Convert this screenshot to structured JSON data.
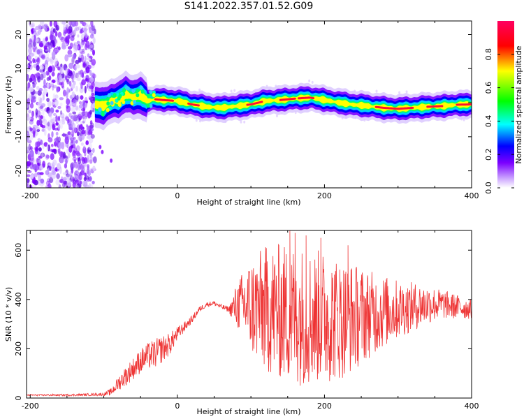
{
  "title": "S141.2022.357.01.52.G09",
  "chart_data": [
    {
      "type": "heatmap",
      "xlabel": "Height of straight line (km)",
      "ylabel": "Frequency (Hz)",
      "xlim": [
        -205,
        400
      ],
      "ylim": [
        -25,
        24
      ],
      "x_ticks": [
        -200,
        0,
        200,
        400
      ],
      "y_ticks": [
        -20,
        -10,
        0,
        10,
        20
      ],
      "colorbar": {
        "label": "Normalized spectral amplitude",
        "range": [
          0,
          1
        ],
        "ticks": [
          0.0,
          0.2,
          0.4,
          0.6,
          0.8
        ],
        "colormap": [
          "#ffffff",
          "#7b00ff",
          "#0000ff",
          "#00ffff",
          "#00ff00",
          "#ffff00",
          "#ff0000",
          "#ff0060"
        ]
      },
      "noise_region_x": [
        -205,
        -112
      ],
      "signal_track": {
        "x": [
          -112,
          -100,
          -90,
          -80,
          -70,
          -60,
          -50,
          -40,
          -30,
          -20,
          0,
          20,
          40,
          60,
          80,
          100,
          120,
          140,
          160,
          180,
          200,
          220,
          240,
          260,
          280,
          300,
          320,
          340,
          360,
          380,
          400
        ],
        "y": [
          -0.5,
          -1.0,
          0.5,
          0.8,
          2.5,
          1.5,
          2.2,
          0.5,
          1.0,
          0.8,
          0.5,
          -0.5,
          -1.2,
          -1.5,
          -1.0,
          -0.5,
          0.5,
          0.8,
          1.2,
          1.5,
          0.8,
          0.0,
          -0.6,
          -1.0,
          -1.5,
          -1.8,
          -1.5,
          -1.2,
          -1.0,
          -0.6,
          -0.5
        ]
      }
    },
    {
      "type": "line",
      "xlabel": "Height of straight line (km)",
      "ylabel": "SNR (10 * v/v)",
      "xlim": [
        -205,
        400
      ],
      "ylim": [
        0,
        680
      ],
      "x_ticks": [
        -200,
        0,
        200,
        400
      ],
      "y_ticks": [
        0,
        200,
        400,
        600
      ],
      "line_color": "#ee3333",
      "envelope": {
        "x": [
          -205,
          -150,
          -100,
          -90,
          -80,
          -70,
          -60,
          -50,
          -40,
          -30,
          -20,
          -10,
          0,
          10,
          20,
          30,
          40,
          50,
          60,
          70,
          75,
          80,
          90,
          100,
          120,
          140,
          160,
          180,
          200,
          220,
          240,
          260,
          280,
          300,
          320,
          340,
          360,
          380,
          400
        ],
        "mean": [
          12,
          12,
          15,
          25,
          60,
          90,
          120,
          150,
          170,
          180,
          200,
          220,
          260,
          290,
          320,
          360,
          380,
          385,
          370,
          360,
          365,
          375,
          380,
          370,
          360,
          350,
          340,
          330,
          330,
          320,
          330,
          340,
          350,
          360,
          370,
          380,
          380,
          370,
          360
        ],
        "amplitude": [
          3,
          4,
          6,
          15,
          30,
          40,
          45,
          50,
          55,
          60,
          55,
          45,
          30,
          20,
          15,
          12,
          10,
          10,
          10,
          12,
          50,
          90,
          140,
          200,
          260,
          280,
          290,
          280,
          270,
          250,
          220,
          180,
          150,
          120,
          100,
          80,
          60,
          50,
          40
        ]
      },
      "series": [
        {
          "peaks_x": [
            153,
            160,
            175,
            195,
            232
          ],
          "peaks_y": [
            680,
            670,
            660,
            650,
            620
          ]
        }
      ]
    }
  ]
}
